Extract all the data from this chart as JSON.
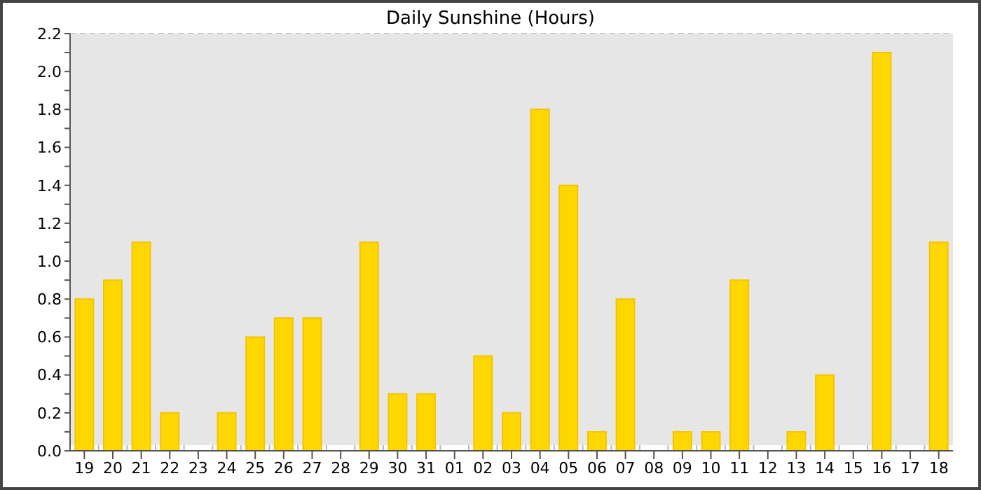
{
  "chart_data": {
    "type": "bar",
    "title": "Daily Sunshine (Hours)",
    "categories": [
      "19",
      "20",
      "21",
      "22",
      "23",
      "24",
      "25",
      "26",
      "27",
      "28",
      "29",
      "30",
      "31",
      "01",
      "02",
      "03",
      "04",
      "05",
      "06",
      "07",
      "08",
      "09",
      "10",
      "11",
      "12",
      "13",
      "14",
      "15",
      "16",
      "17",
      "18"
    ],
    "values": [
      0.8,
      0.9,
      1.1,
      0.2,
      0,
      0.2,
      0.6,
      0.7,
      0.7,
      0,
      1.1,
      0.3,
      0.3,
      0,
      0.5,
      0.2,
      1.8,
      1.4,
      0.1,
      0.8,
      0,
      0.1,
      0.1,
      0.9,
      0,
      0.1,
      0.4,
      0,
      2.1,
      0,
      1.1
    ],
    "color": "#ffd700",
    "ylim": [
      0,
      2.2
    ],
    "yticks": [
      {
        "value": 0,
        "label": "0.0"
      },
      {
        "value": 0.1,
        "label": null
      },
      0.2,
      {
        "value": 0.3,
        "label": null
      },
      0.4,
      {
        "value": 0.5,
        "label": null
      },
      0.6,
      {
        "value": 0.7,
        "label": null
      },
      0.8,
      {
        "value": 0.9,
        "label": null
      },
      {
        "value": 1,
        "label": "1.0"
      },
      {
        "value": 1.1,
        "label": null
      },
      1.2,
      {
        "value": 1.3,
        "label": null
      },
      1.4,
      {
        "value": 1.5,
        "label": null
      },
      1.6,
      {
        "value": 1.7,
        "label": null
      },
      1.8,
      {
        "value": 1.9,
        "label": null
      },
      {
        "value": 2,
        "label": "2.0"
      },
      {
        "value": 2.1,
        "label": null
      },
      2.2
    ],
    "grid": true,
    "legend": false
  }
}
